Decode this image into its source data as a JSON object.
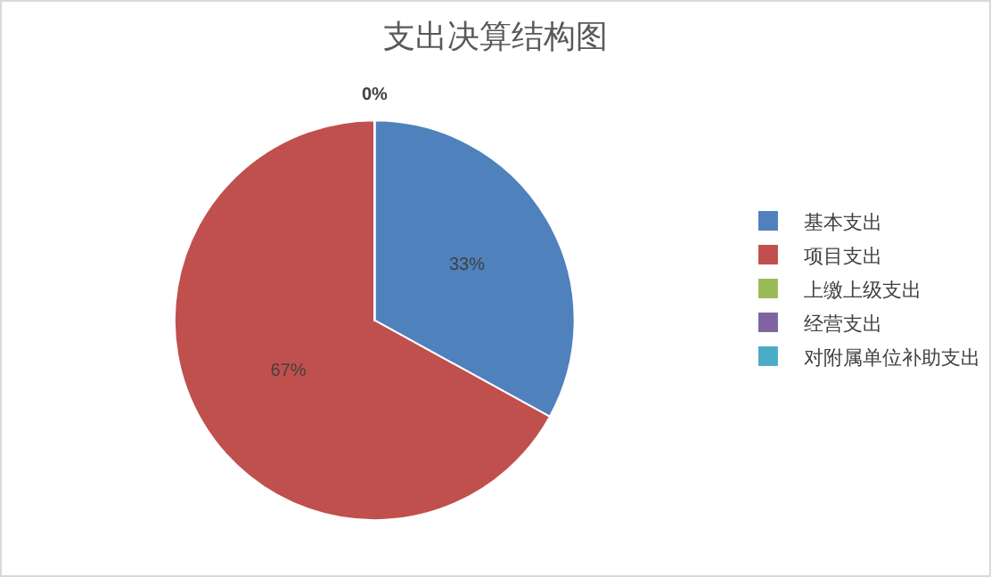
{
  "chart_data": {
    "type": "pie",
    "title": "支出决算结构图",
    "categories": [
      "基本支出",
      "项目支出",
      "上缴上级支出",
      "经营支出",
      "对附属单位补助支出"
    ],
    "values": [
      33,
      67,
      0,
      0,
      0
    ],
    "colors": [
      "#4f81bd",
      "#c0504d",
      "#9bbb59",
      "#8064a2",
      "#4bacc6"
    ],
    "value_labels": [
      "33%",
      "67%",
      "0%",
      null,
      null
    ],
    "legend": "right"
  }
}
